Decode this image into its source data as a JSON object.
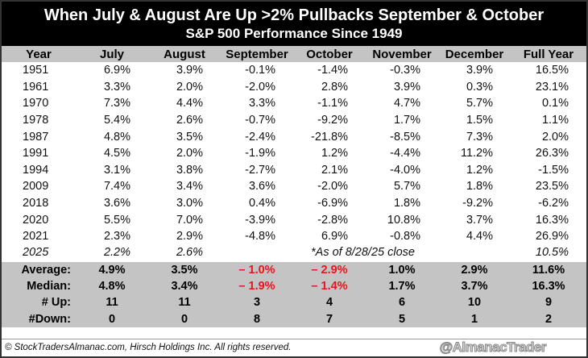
{
  "title": "When July & August Are Up >2% Pullbacks September & October",
  "subtitle": "S&P 500 Performance Since 1949",
  "headers": [
    "Year",
    "July",
    "August",
    "September",
    "October",
    "November",
    "December",
    "Full Year"
  ],
  "rows": [
    [
      "1951",
      "6.9%",
      "3.9%",
      "-0.1%",
      "-1.4%",
      "-0.3%",
      "3.9%",
      "16.5%"
    ],
    [
      "1961",
      "3.3%",
      "2.0%",
      "-2.0%",
      "2.8%",
      "3.9%",
      "0.3%",
      "23.1%"
    ],
    [
      "1970",
      "7.3%",
      "4.4%",
      "3.3%",
      "-1.1%",
      "4.7%",
      "5.7%",
      "0.1%"
    ],
    [
      "1978",
      "5.4%",
      "2.6%",
      "-0.7%",
      "-9.2%",
      "1.7%",
      "1.5%",
      "1.1%"
    ],
    [
      "1987",
      "4.8%",
      "3.5%",
      "-2.4%",
      "-21.8%",
      "-8.5%",
      "7.3%",
      "2.0%"
    ],
    [
      "1991",
      "4.5%",
      "2.0%",
      "-1.9%",
      "1.2%",
      "-4.4%",
      "11.2%",
      "26.3%"
    ],
    [
      "1994",
      "3.1%",
      "3.8%",
      "-2.7%",
      "2.1%",
      "-4.0%",
      "1.2%",
      "-1.5%"
    ],
    [
      "2009",
      "7.4%",
      "3.4%",
      "3.6%",
      "-2.0%",
      "5.7%",
      "1.8%",
      "23.5%"
    ],
    [
      "2018",
      "3.6%",
      "3.0%",
      "0.4%",
      "-6.9%",
      "1.8%",
      "-9.2%",
      "-6.2%"
    ],
    [
      "2020",
      "5.5%",
      "7.0%",
      "-3.9%",
      "-2.8%",
      "10.8%",
      "3.7%",
      "16.3%"
    ],
    [
      "2021",
      "2.3%",
      "2.9%",
      "-4.8%",
      "6.9%",
      "-0.8%",
      "4.4%",
      "26.9%"
    ]
  ],
  "current": {
    "year": "2025",
    "july": "2.2%",
    "august": "2.6%",
    "note": "*As of 8/28/25 close",
    "full_year": "10.5%"
  },
  "summary": [
    [
      "Average:",
      "4.9%",
      "3.5%",
      "– 1.0%",
      "– 2.9%",
      "1.0%",
      "2.9%",
      "11.6%"
    ],
    [
      "Median:",
      "4.8%",
      "3.4%",
      "– 1.9%",
      "– 1.4%",
      "1.7%",
      "3.7%",
      "16.3%"
    ],
    [
      "# Up:",
      "11",
      "11",
      "3",
      "4",
      "6",
      "10",
      "9"
    ],
    [
      "#Down:",
      "0",
      "0",
      "8",
      "7",
      "5",
      "1",
      "2"
    ]
  ],
  "footer": {
    "copyright": "© StockTradersAlmanac.com, Hirsch Holdings Inc. All rights reserved.",
    "handle": "@AlmanacTrader"
  },
  "colors": {
    "negative": "#e8141c",
    "header_bg": "#c4c4c4",
    "title_bg": "#000000"
  }
}
